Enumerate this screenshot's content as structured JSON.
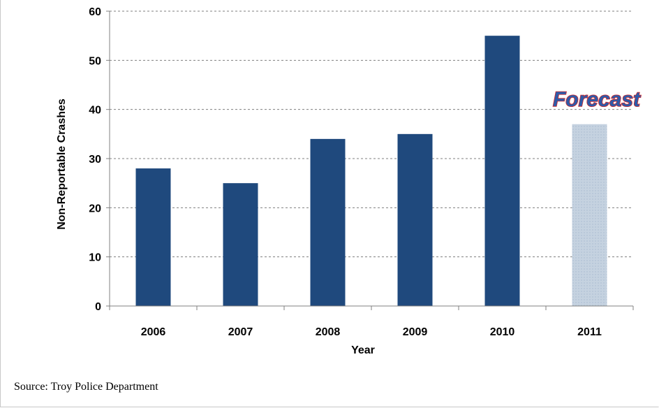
{
  "chart_data": {
    "type": "bar",
    "categories": [
      "2006",
      "2007",
      "2008",
      "2009",
      "2010",
      "2011"
    ],
    "values": [
      28,
      25,
      34,
      35,
      55,
      37
    ],
    "forecast_flags": [
      false,
      false,
      false,
      false,
      false,
      true
    ],
    "xlabel": "Year",
    "ylabel": "Non-Reportable Crashes",
    "ylim": [
      0,
      60
    ],
    "yticks": [
      0,
      10,
      20,
      30,
      40,
      50,
      60
    ],
    "grid": true,
    "annotations": [
      {
        "text": "Forecast",
        "category": "2011"
      }
    ],
    "colors": {
      "actual": "#1f497d",
      "forecast": "#c5d2e0",
      "annotation_fill": "#2e5aa8",
      "annotation_stroke": "#d62828"
    }
  },
  "source_note": "Source: Troy Police Department"
}
